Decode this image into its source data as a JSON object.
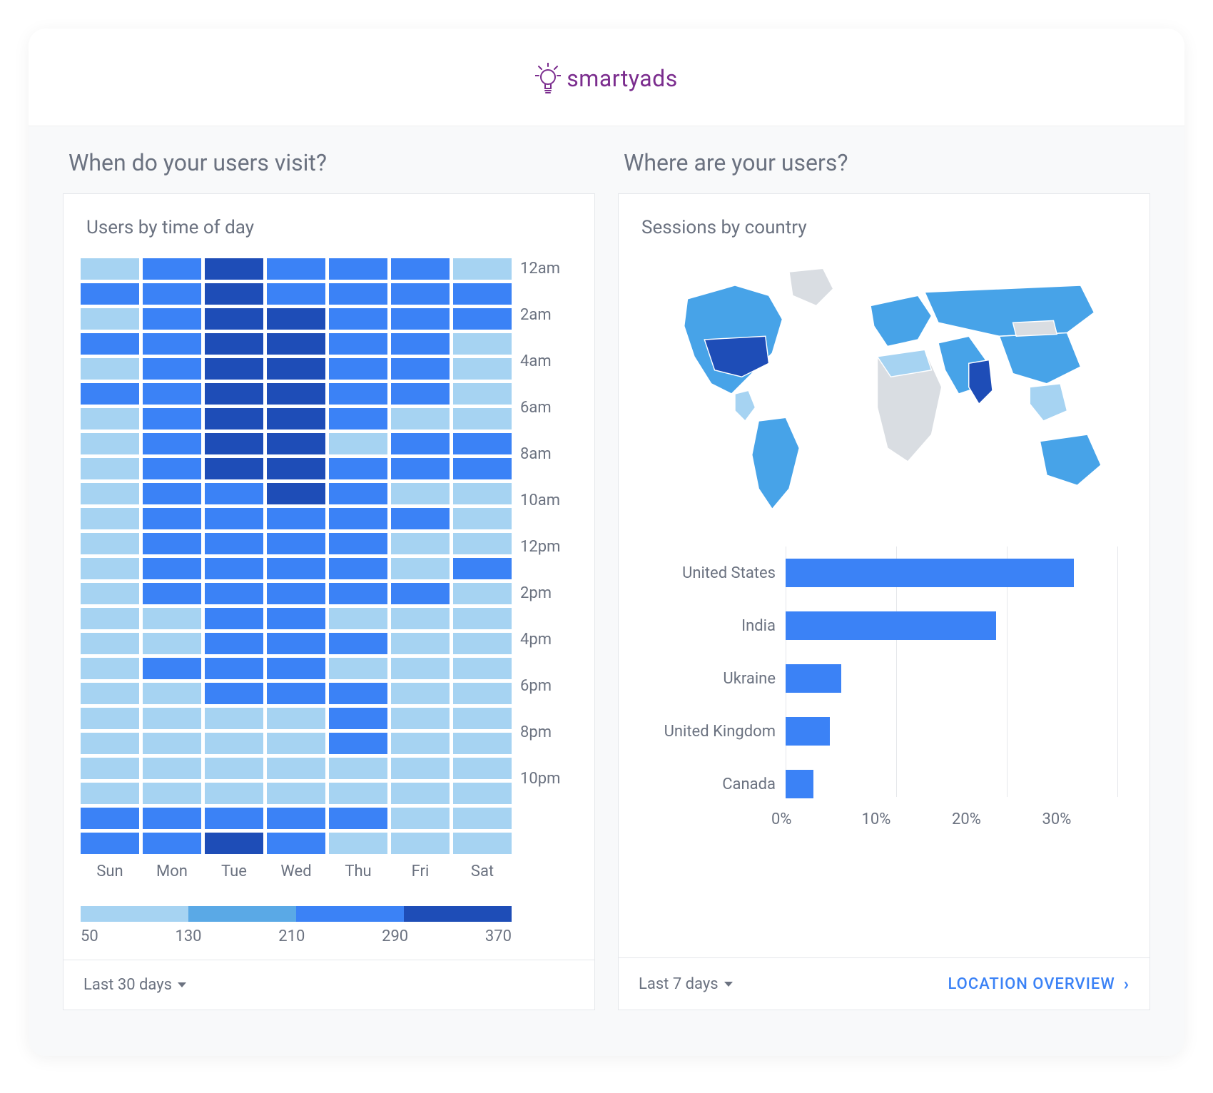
{
  "brand": {
    "name": "smartyads",
    "brand_color": "#7b2d8e"
  },
  "colors": {
    "page_bg": "#ffffff",
    "panels_bg": "#f8f9fa",
    "card_bg": "#ffffff",
    "border": "#e5e7eb",
    "text_muted": "#6b7280",
    "link": "#3b82f6"
  },
  "left_panel": {
    "question": "When do your users visit?",
    "subtitle": "Users by time of day",
    "footer_range": "Last 30 days",
    "heatmap": {
      "type": "heatmap",
      "x_labels": [
        "Sun",
        "Mon",
        "Tue",
        "Wed",
        "Thu",
        "Fri",
        "Sat"
      ],
      "y_labels_every_other": [
        "12am",
        "2am",
        "4am",
        "6am",
        "8am",
        "10am",
        "12pm",
        "2pm",
        "4pm",
        "6pm",
        "8pm",
        "10pm"
      ],
      "row_count": 24,
      "scale_colors": [
        "#a6d3f2",
        "#5aa9e6",
        "#3b82f6",
        "#1e4db7"
      ],
      "cells": [
        [
          0,
          2,
          3,
          2,
          2,
          2,
          0
        ],
        [
          2,
          2,
          3,
          2,
          2,
          2,
          2
        ],
        [
          0,
          2,
          3,
          3,
          2,
          2,
          2
        ],
        [
          2,
          2,
          3,
          3,
          2,
          2,
          0
        ],
        [
          0,
          2,
          3,
          3,
          2,
          2,
          0
        ],
        [
          2,
          2,
          3,
          3,
          2,
          2,
          0
        ],
        [
          0,
          2,
          3,
          3,
          2,
          0,
          0
        ],
        [
          0,
          2,
          3,
          3,
          0,
          2,
          2
        ],
        [
          0,
          2,
          3,
          3,
          2,
          2,
          2
        ],
        [
          0,
          2,
          2,
          3,
          2,
          0,
          0
        ],
        [
          0,
          2,
          2,
          2,
          2,
          2,
          0
        ],
        [
          0,
          2,
          2,
          2,
          2,
          0,
          0
        ],
        [
          0,
          2,
          2,
          2,
          2,
          0,
          2
        ],
        [
          0,
          2,
          2,
          2,
          2,
          2,
          0
        ],
        [
          0,
          0,
          2,
          2,
          0,
          0,
          0
        ],
        [
          0,
          0,
          2,
          2,
          2,
          0,
          0
        ],
        [
          0,
          2,
          2,
          2,
          0,
          0,
          0
        ],
        [
          0,
          0,
          2,
          2,
          2,
          0,
          0
        ],
        [
          0,
          0,
          0,
          0,
          2,
          0,
          0
        ],
        [
          0,
          0,
          0,
          0,
          2,
          0,
          0
        ],
        [
          0,
          0,
          0,
          0,
          0,
          0,
          0
        ],
        [
          0,
          0,
          0,
          0,
          0,
          0,
          0
        ],
        [
          2,
          2,
          2,
          2,
          2,
          0,
          0
        ],
        [
          2,
          2,
          3,
          2,
          0,
          0,
          0
        ]
      ],
      "legend_ticks": [
        "50",
        "130",
        "210",
        "290",
        "370"
      ]
    }
  },
  "right_panel": {
    "question": "Where are your users?",
    "subtitle": "Sessions by country",
    "footer_range": "Last 7 days",
    "footer_link": "LOCATION OVERVIEW",
    "map": {
      "type": "map",
      "land_default": "#d9dde2",
      "palette": {
        "high": "#1e4db7",
        "mid": "#47a3e8",
        "low": "#a6d3f2"
      }
    },
    "bar_chart": {
      "type": "bar-horizontal",
      "bar_color": "#3b82f6",
      "grid_color": "#e5e7eb",
      "x_ticks": [
        "0%",
        "10%",
        "20%",
        "30%"
      ],
      "x_max_percent": 30,
      "rows": [
        {
          "label": "United States",
          "value_percent": 26
        },
        {
          "label": "India",
          "value_percent": 19
        },
        {
          "label": "Ukraine",
          "value_percent": 5
        },
        {
          "label": "United Kingdom",
          "value_percent": 4
        },
        {
          "label": "Canada",
          "value_percent": 2.5
        }
      ]
    }
  }
}
